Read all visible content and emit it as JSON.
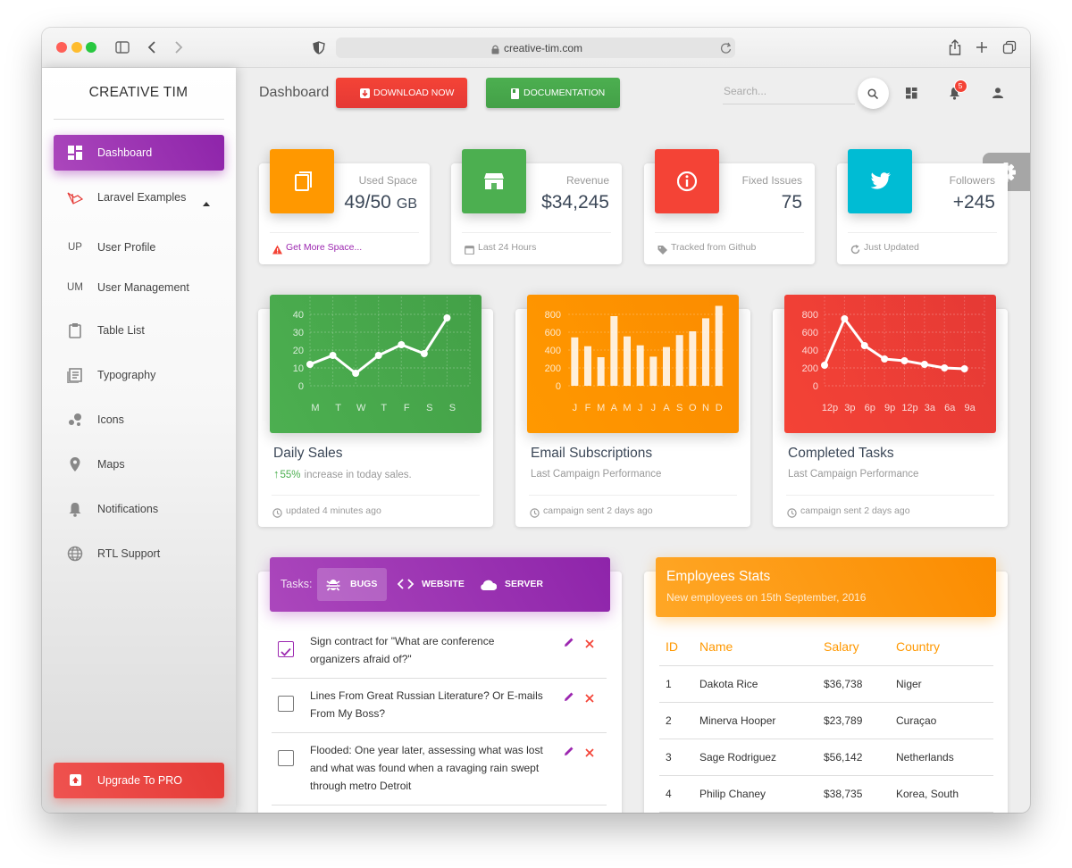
{
  "browser": {
    "url": "creative-tim.com"
  },
  "sidebar": {
    "brand": "CREATIVE TIM",
    "items": [
      {
        "label": "Dashboard",
        "active": true
      },
      {
        "label": "Laravel Examples"
      },
      {
        "abbr": "UP",
        "label": "User Profile"
      },
      {
        "abbr": "UM",
        "label": "User Management"
      },
      {
        "label": "Table List"
      },
      {
        "label": "Typography"
      },
      {
        "label": "Icons"
      },
      {
        "label": "Maps"
      },
      {
        "label": "Notifications"
      },
      {
        "label": "RTL Support"
      }
    ],
    "upgrade": "Upgrade To PRO"
  },
  "navbar": {
    "title": "Dashboard",
    "buttons": [
      "DOWNLOAD NOW",
      "DOCUMENTATION"
    ],
    "search_placeholder": "Search...",
    "notification_count": "5"
  },
  "stats": [
    {
      "label": "Used Space",
      "value": "49/50",
      "unit": "GB",
      "footer": "Get More Space...",
      "color": "#ff9800"
    },
    {
      "label": "Revenue",
      "value": "$34,245",
      "footer": "Last 24 Hours",
      "color": "#4caf50"
    },
    {
      "label": "Fixed Issues",
      "value": "75",
      "footer": "Tracked from Github",
      "color": "#f44336"
    },
    {
      "label": "Followers",
      "value": "+245",
      "footer": "Just Updated",
      "color": "#00bcd4"
    }
  ],
  "charts": [
    {
      "type": "line",
      "title": "Daily Sales",
      "highlight": "55%",
      "subtitle": "increase in today sales.",
      "footer": "updated 4 minutes ago",
      "categories": [
        "M",
        "T",
        "W",
        "T",
        "F",
        "S",
        "S"
      ],
      "values": [
        12,
        17,
        7,
        17,
        23,
        18,
        38
      ],
      "ylim": [
        0,
        50
      ],
      "yticks": [
        0,
        10,
        20,
        30,
        40
      ],
      "grid": true,
      "color": "#ffffff",
      "background": "#4caf50"
    },
    {
      "type": "bar",
      "title": "Email Subscriptions",
      "subtitle": "Last Campaign Performance",
      "footer": "campaign sent 2 days ago",
      "categories": [
        "J",
        "F",
        "M",
        "A",
        "M",
        "J",
        "J",
        "A",
        "S",
        "O",
        "N",
        "D"
      ],
      "values": [
        542,
        443,
        320,
        780,
        553,
        453,
        326,
        434,
        568,
        610,
        756,
        895
      ],
      "ylim": [
        0,
        1000
      ],
      "yticks": [
        0,
        200,
        400,
        600,
        800
      ],
      "grid": true,
      "color": "#ffffff",
      "background": "#ff9800"
    },
    {
      "type": "line",
      "title": "Completed Tasks",
      "subtitle": "Last Campaign Performance",
      "footer": "campaign sent 2 days ago",
      "categories": [
        "12p",
        "3p",
        "6p",
        "9p",
        "12p",
        "3a",
        "6a",
        "9a"
      ],
      "values": [
        230,
        750,
        450,
        300,
        280,
        240,
        200,
        190
      ],
      "ylim": [
        0,
        1000
      ],
      "yticks": [
        0,
        200,
        400,
        600,
        800
      ],
      "grid": true,
      "color": "#ffffff",
      "background": "#f44336"
    }
  ],
  "tasks": {
    "label": "Tasks:",
    "tabs": [
      "BUGS",
      "WEBSITE",
      "SERVER"
    ],
    "items": [
      {
        "text": "Sign contract for \"What are conference organizers afraid of?\"",
        "checked": true
      },
      {
        "text": "Lines From Great Russian Literature? Or E-mails From My Boss?",
        "checked": false
      },
      {
        "text": "Flooded: One year later, assessing what was lost and what was found when a ravaging rain swept through metro Detroit",
        "checked": false
      }
    ]
  },
  "employees": {
    "title": "Employees Stats",
    "subtitle": "New employees on 15th September, 2016",
    "columns": [
      "ID",
      "Name",
      "Salary",
      "Country"
    ],
    "rows": [
      [
        "1",
        "Dakota Rice",
        "$36,738",
        "Niger"
      ],
      [
        "2",
        "Minerva Hooper",
        "$23,789",
        "Curaçao"
      ],
      [
        "3",
        "Sage Rodriguez",
        "$56,142",
        "Netherlands"
      ],
      [
        "4",
        "Philip Chaney",
        "$38,735",
        "Korea, South"
      ]
    ]
  }
}
